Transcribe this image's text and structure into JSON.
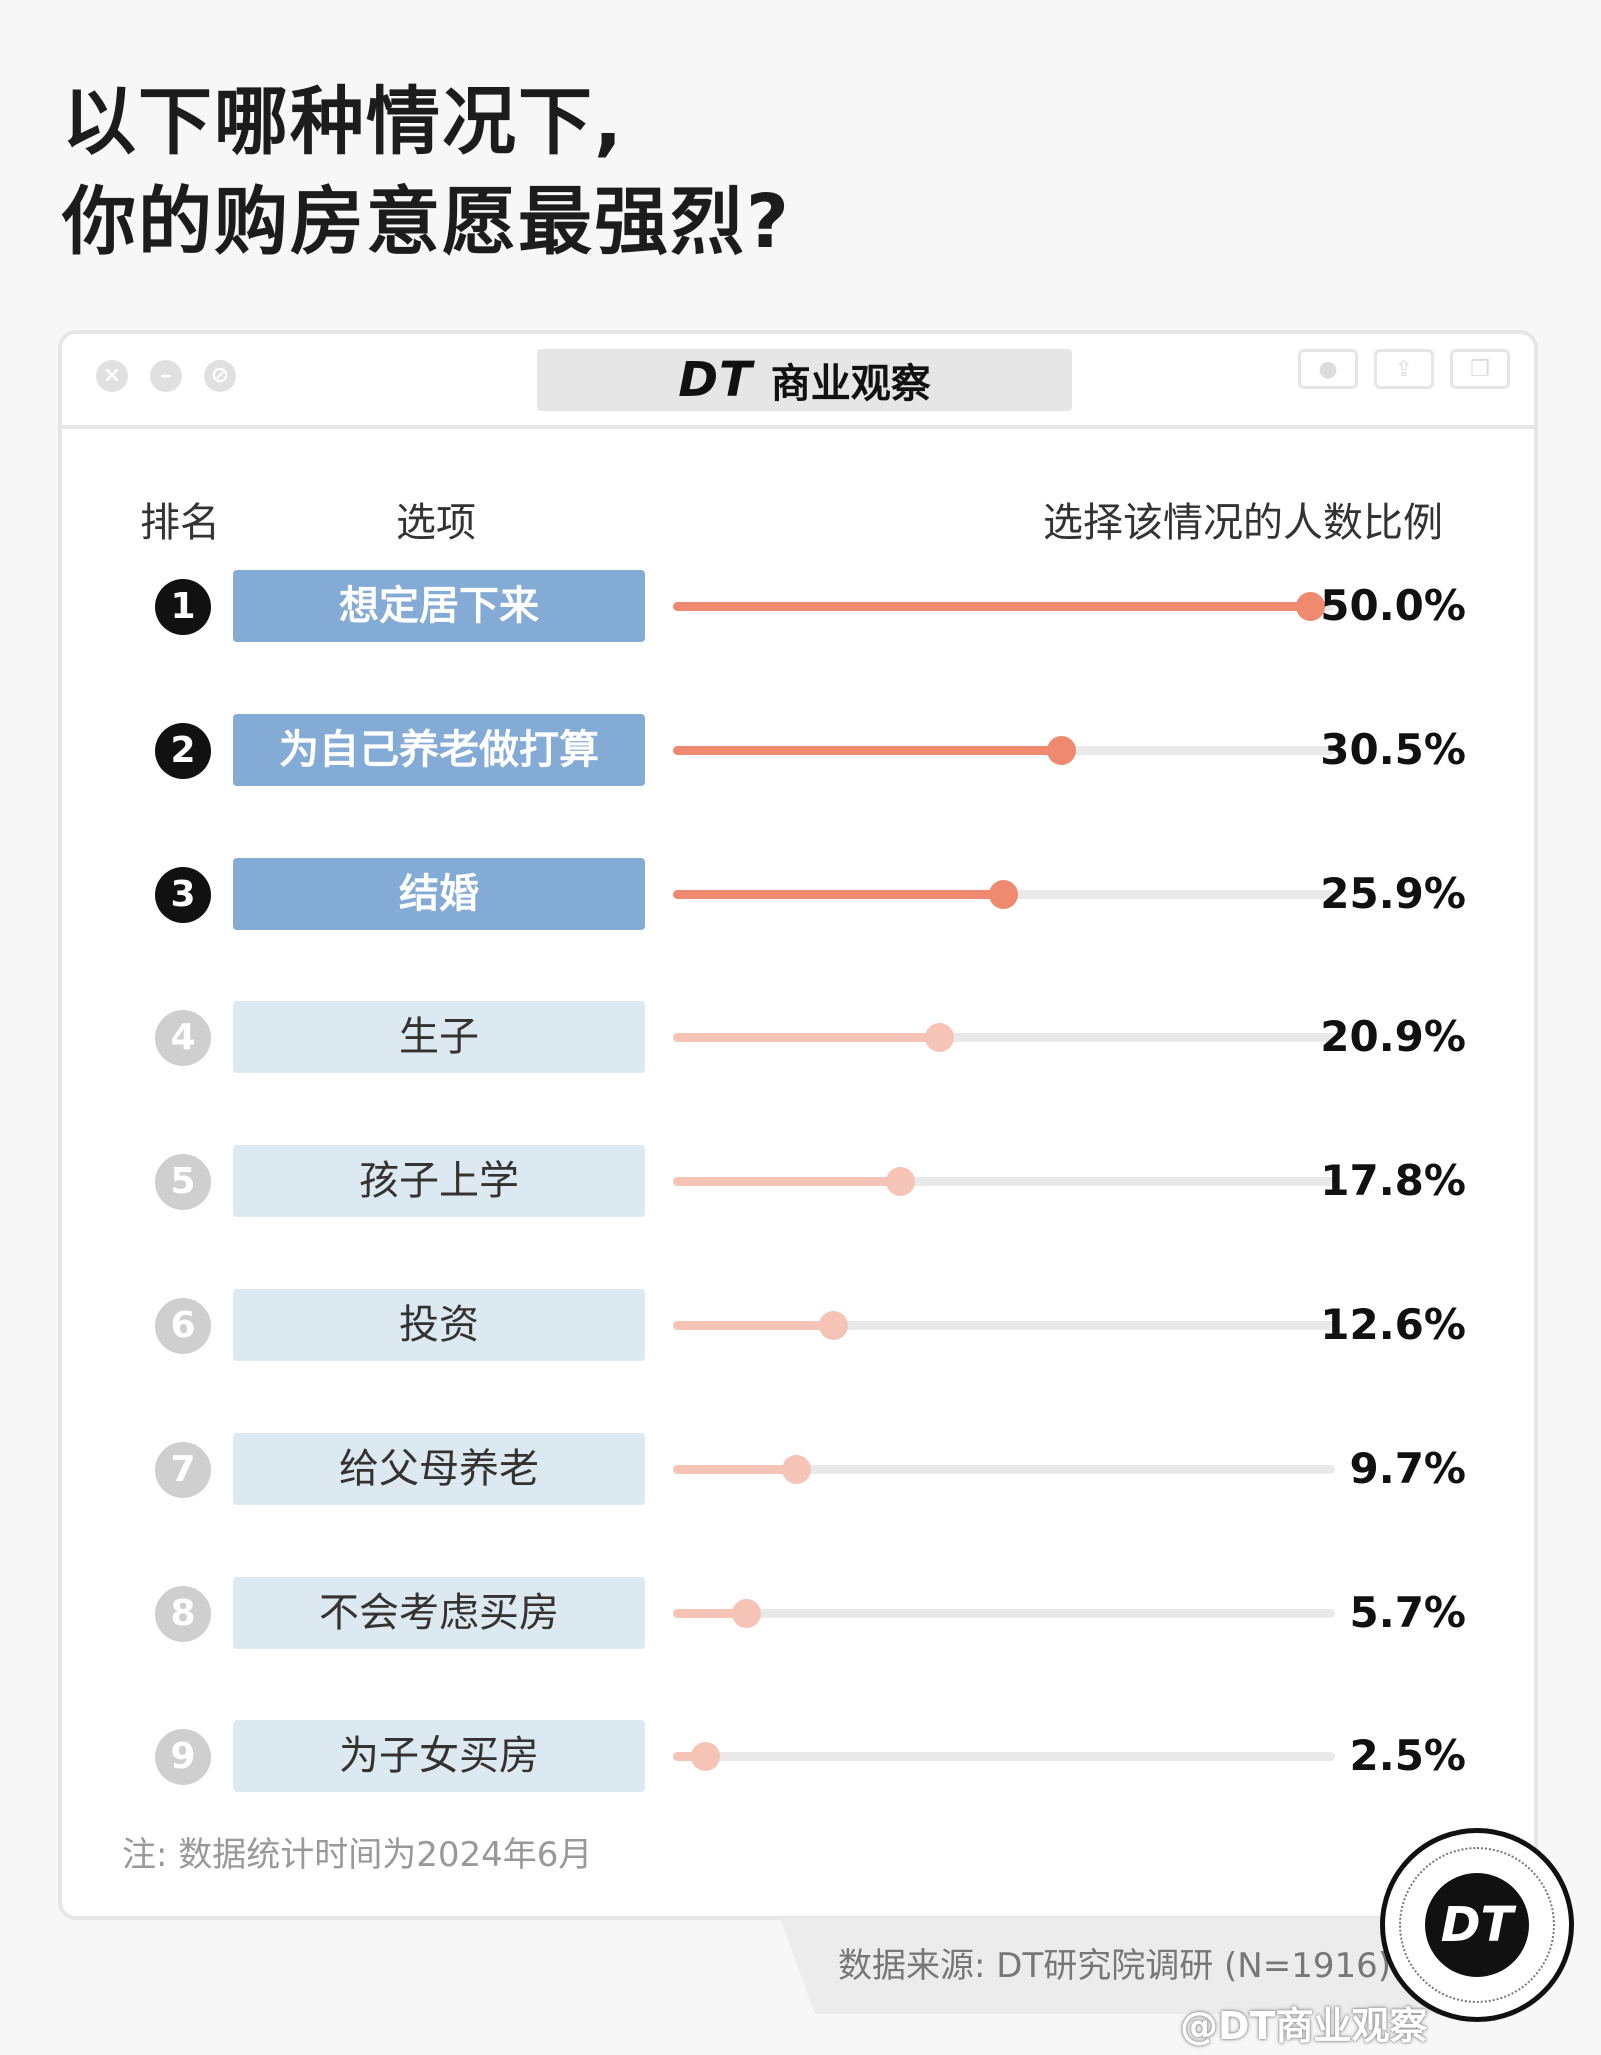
{
  "title": {
    "line1": "以下哪种情况下,",
    "line2": "你的购房意愿最强烈?"
  },
  "window": {
    "brand_dt": "DT",
    "brand_name": "商业观察",
    "controls": [
      "close-icon",
      "minimize-icon",
      "block-icon"
    ],
    "buttons": [
      "record-icon",
      "share-icon",
      "copy-icon"
    ]
  },
  "headers": {
    "rank": "排名",
    "option": "选项",
    "ratio": "选择该情况的人数比例"
  },
  "chart_data": {
    "type": "bar",
    "categories": [
      "想定居下来",
      "为自己养老做打算",
      "结婚",
      "生子",
      "孩子上学",
      "投资",
      "给父母养老",
      "不会考虑买房",
      "为子女买房"
    ],
    "ranks": [
      "1",
      "2",
      "3",
      "4",
      "5",
      "6",
      "7",
      "8",
      "9"
    ],
    "values": [
      50.0,
      30.5,
      25.9,
      20.9,
      17.8,
      12.6,
      9.7,
      5.7,
      2.5
    ],
    "labels": [
      "50.0%",
      "30.5%",
      "25.9%",
      "20.9%",
      "17.8%",
      "12.6%",
      "9.7%",
      "5.7%",
      "2.5%"
    ],
    "unit": "%",
    "xlim": [
      0,
      52
    ],
    "highlight_top": 3,
    "colors": {
      "top_label": "#84abd6",
      "rest_label": "#dde9f0",
      "top_bar": "#ef8a70",
      "rest_bar": "#f6c4b6",
      "track": "#e9e9e9"
    }
  },
  "note": "注: 数据统计时间为2024年6月",
  "source": "数据来源: DT研究院调研 (N=1916)",
  "badge": "DT",
  "footer_tag": "@DT商业观察"
}
